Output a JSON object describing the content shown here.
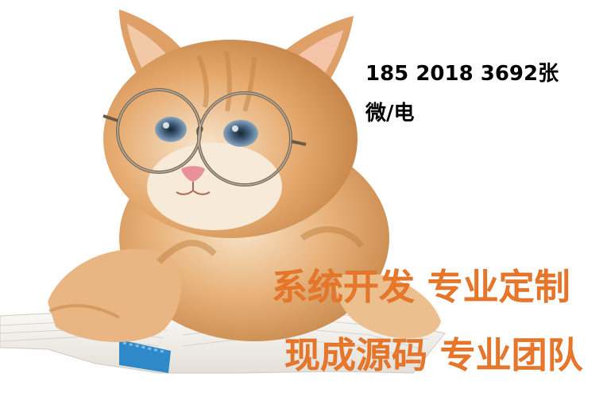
{
  "image": {
    "subject": "kitten-with-glasses-on-book",
    "colors": {
      "background": "#ffffff",
      "fur_light": "#f3d9b6",
      "fur_dark": "#d79a5c",
      "book_pages": "#f5f3ee",
      "bookmark_blue": "#2f88c8",
      "text_black": "#000000",
      "text_orange": "#f07a2a"
    }
  },
  "contact": {
    "phone_line": "185 2018 3692张",
    "method_line": "微/电"
  },
  "slogans": {
    "line1": "系统开发 专业定制",
    "line2": "现成源码 专业团队"
  }
}
